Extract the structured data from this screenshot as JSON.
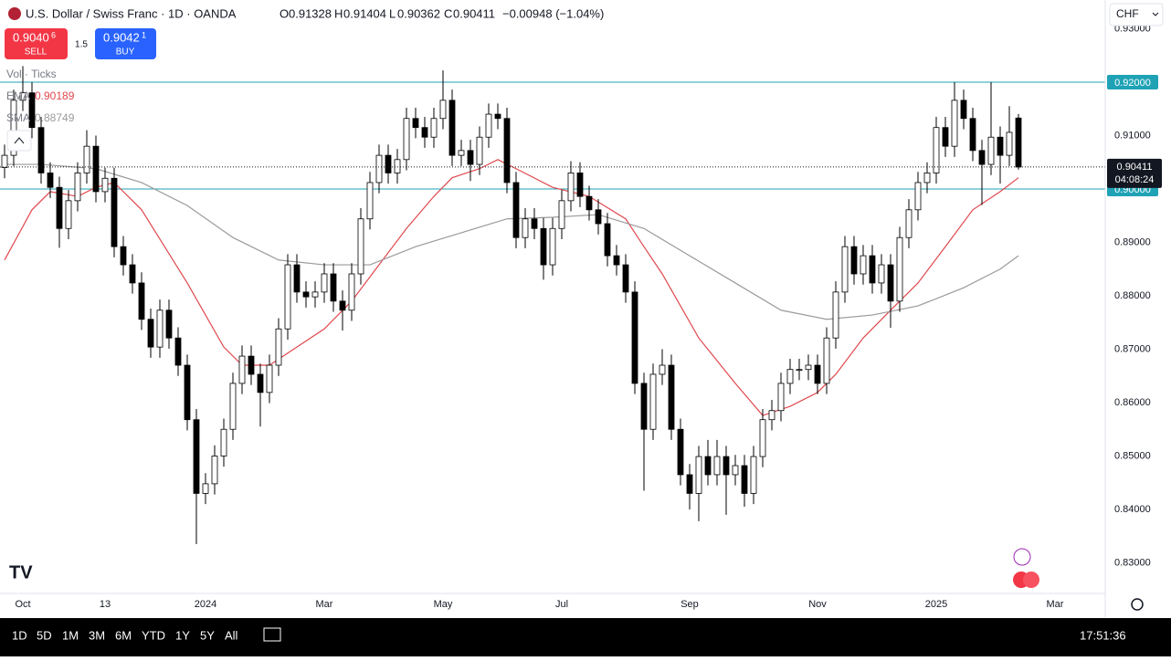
{
  "chart_data": {
    "type": "candlestick",
    "title": "U.S. Dollar / Swiss Franc · 1D · OANDA",
    "change": "−0.00948 (−1.04%)",
    "categories": [
      null,
      null,
      "Oct",
      null,
      null,
      null,
      null,
      null,
      null,
      null,
      null,
      "13",
      null,
      null,
      null,
      null,
      null,
      null,
      null,
      null,
      null,
      null,
      "2024",
      null,
      null,
      null,
      null,
      null,
      null,
      null,
      null,
      null,
      null,
      null,
      null,
      "Mar",
      null,
      null,
      null,
      null,
      null,
      null,
      null,
      null,
      null,
      null,
      null,
      null,
      "May",
      null,
      null,
      null,
      null,
      null,
      null,
      null,
      null,
      null,
      null,
      null,
      null,
      "Jul",
      null,
      null,
      null,
      null,
      null,
      null,
      null,
      null,
      null,
      null,
      null,
      null,
      null,
      "Sep",
      null,
      null,
      null,
      null,
      null,
      null,
      null,
      null,
      null,
      null,
      null,
      null,
      null,
      "Nov",
      null,
      null,
      null,
      null,
      null,
      null,
      null,
      null,
      null,
      null,
      null,
      null,
      "2025",
      null,
      null,
      null,
      null,
      null,
      null,
      null,
      null,
      null,
      null,
      null,
      null,
      "Mar"
    ],
    "ohlc": [
      [
        0.904,
        0.9083,
        0.902,
        0.9063
      ],
      [
        0.9063,
        0.9186,
        0.9043,
        0.9166
      ],
      [
        0.9166,
        0.923,
        0.9146,
        0.918
      ],
      [
        0.918,
        0.92,
        0.9095,
        0.9115
      ],
      [
        0.9115,
        0.9135,
        0.901,
        0.903
      ],
      [
        0.903,
        0.905,
        0.8983,
        0.9003
      ],
      [
        0.9003,
        0.9023,
        0.889,
        0.8926
      ],
      [
        0.8926,
        0.8998,
        0.8906,
        0.8978
      ],
      [
        0.8978,
        0.905,
        0.8958,
        0.903
      ],
      [
        0.903,
        0.911,
        0.901,
        0.908
      ],
      [
        0.908,
        0.91,
        0.8975,
        0.8995
      ],
      [
        0.8995,
        0.904,
        0.8975,
        0.902
      ],
      [
        0.902,
        0.904,
        0.8872,
        0.8892
      ],
      [
        0.8892,
        0.8912,
        0.8838,
        0.8858
      ],
      [
        0.8858,
        0.8878,
        0.8804,
        0.8824
      ],
      [
        0.8824,
        0.8844,
        0.8736,
        0.8756
      ],
      [
        0.8756,
        0.8776,
        0.8684,
        0.8704
      ],
      [
        0.8704,
        0.8793,
        0.8684,
        0.8773
      ],
      [
        0.8773,
        0.8793,
        0.8701,
        0.8721
      ],
      [
        0.8721,
        0.8741,
        0.865,
        0.867
      ],
      [
        0.867,
        0.869,
        0.8548,
        0.8568
      ],
      [
        0.8568,
        0.8588,
        0.8335,
        0.843
      ],
      [
        0.843,
        0.8468,
        0.841,
        0.8448
      ],
      [
        0.8448,
        0.852,
        0.8428,
        0.85
      ],
      [
        0.85,
        0.857,
        0.848,
        0.855
      ],
      [
        0.855,
        0.8656,
        0.853,
        0.8636
      ],
      [
        0.8636,
        0.8707,
        0.8616,
        0.8687
      ],
      [
        0.8687,
        0.8707,
        0.8633,
        0.8653
      ],
      [
        0.8653,
        0.8673,
        0.8555,
        0.8619
      ],
      [
        0.8619,
        0.869,
        0.8599,
        0.867
      ],
      [
        0.867,
        0.8758,
        0.865,
        0.8738
      ],
      [
        0.8738,
        0.8878,
        0.8718,
        0.8858
      ],
      [
        0.8858,
        0.8878,
        0.8787,
        0.8807
      ],
      [
        0.8807,
        0.8827,
        0.8778,
        0.8798
      ],
      [
        0.8798,
        0.8827,
        0.8778,
        0.8807
      ],
      [
        0.8807,
        0.8861,
        0.8787,
        0.8841
      ],
      [
        0.8841,
        0.8861,
        0.877,
        0.879
      ],
      [
        0.879,
        0.881,
        0.8735,
        0.8773
      ],
      [
        0.8773,
        0.8861,
        0.8753,
        0.8841
      ],
      [
        0.8841,
        0.8964,
        0.8821,
        0.8944
      ],
      [
        0.8944,
        0.9032,
        0.8924,
        0.9012
      ],
      [
        0.9012,
        0.9083,
        0.8992,
        0.9063
      ],
      [
        0.9063,
        0.9083,
        0.901,
        0.903
      ],
      [
        0.903,
        0.9075,
        0.901,
        0.9055
      ],
      [
        0.9055,
        0.9152,
        0.9035,
        0.9132
      ],
      [
        0.9132,
        0.9152,
        0.9095,
        0.9115
      ],
      [
        0.9115,
        0.9135,
        0.9077,
        0.9097
      ],
      [
        0.9097,
        0.9152,
        0.9077,
        0.9132
      ],
      [
        0.9132,
        0.9222,
        0.9112,
        0.9166
      ],
      [
        0.9166,
        0.9186,
        0.9043,
        0.9063
      ],
      [
        0.9063,
        0.9092,
        0.9043,
        0.9072
      ],
      [
        0.9072,
        0.9092,
        0.9015,
        0.9046
      ],
      [
        0.9046,
        0.9117,
        0.9026,
        0.9097
      ],
      [
        0.9097,
        0.916,
        0.9077,
        0.914
      ],
      [
        0.914,
        0.916,
        0.9112,
        0.9132
      ],
      [
        0.9132,
        0.9152,
        0.8992,
        0.9012
      ],
      [
        0.9012,
        0.9032,
        0.8889,
        0.8909
      ],
      [
        0.8909,
        0.8964,
        0.8889,
        0.8944
      ],
      [
        0.8944,
        0.8964,
        0.8906,
        0.8926
      ],
      [
        0.8926,
        0.8946,
        0.883,
        0.8858
      ],
      [
        0.8858,
        0.8946,
        0.8838,
        0.8926
      ],
      [
        0.8926,
        0.8998,
        0.8906,
        0.8978
      ],
      [
        0.8978,
        0.9052,
        0.8958,
        0.903
      ],
      [
        0.903,
        0.905,
        0.8966,
        0.8986
      ],
      [
        0.8986,
        0.9006,
        0.8941,
        0.8961
      ],
      [
        0.8961,
        0.8981,
        0.8915,
        0.8935
      ],
      [
        0.8935,
        0.8955,
        0.8855,
        0.8875
      ],
      [
        0.8875,
        0.8895,
        0.8838,
        0.8858
      ],
      [
        0.8858,
        0.8878,
        0.8787,
        0.8807
      ],
      [
        0.8807,
        0.8827,
        0.8616,
        0.8636
      ],
      [
        0.8636,
        0.8656,
        0.8435,
        0.855
      ],
      [
        0.855,
        0.8673,
        0.853,
        0.8653
      ],
      [
        0.8653,
        0.87,
        0.8633,
        0.867
      ],
      [
        0.867,
        0.869,
        0.853,
        0.855
      ],
      [
        0.855,
        0.857,
        0.8445,
        0.8465
      ],
      [
        0.8465,
        0.8485,
        0.84,
        0.843
      ],
      [
        0.843,
        0.8519,
        0.8378,
        0.8499
      ],
      [
        0.8499,
        0.853,
        0.8445,
        0.8465
      ],
      [
        0.8465,
        0.853,
        0.8445,
        0.8499
      ],
      [
        0.8499,
        0.8519,
        0.839,
        0.8465
      ],
      [
        0.8465,
        0.8502,
        0.8445,
        0.8482
      ],
      [
        0.8482,
        0.8502,
        0.8405,
        0.843
      ],
      [
        0.843,
        0.8519,
        0.841,
        0.8499
      ],
      [
        0.8499,
        0.8588,
        0.8479,
        0.8568
      ],
      [
        0.8568,
        0.8605,
        0.8548,
        0.8585
      ],
      [
        0.8585,
        0.8656,
        0.8565,
        0.8636
      ],
      [
        0.8636,
        0.8682,
        0.8616,
        0.8662
      ],
      [
        0.8662,
        0.8682,
        0.8642,
        0.8662
      ],
      [
        0.8662,
        0.869,
        0.8642,
        0.867
      ],
      [
        0.867,
        0.869,
        0.8616,
        0.8636
      ],
      [
        0.8636,
        0.8741,
        0.8616,
        0.8721
      ],
      [
        0.8721,
        0.8827,
        0.8701,
        0.8807
      ],
      [
        0.8807,
        0.8912,
        0.8787,
        0.8892
      ],
      [
        0.8892,
        0.8912,
        0.8821,
        0.8841
      ],
      [
        0.8841,
        0.8895,
        0.8821,
        0.8875
      ],
      [
        0.8875,
        0.8895,
        0.8804,
        0.8824
      ],
      [
        0.8824,
        0.8878,
        0.8804,
        0.8858
      ],
      [
        0.8858,
        0.8878,
        0.874,
        0.879
      ],
      [
        0.879,
        0.8929,
        0.877,
        0.8909
      ],
      [
        0.8909,
        0.8981,
        0.8889,
        0.8961
      ],
      [
        0.8961,
        0.9032,
        0.8941,
        0.9012
      ],
      [
        0.9012,
        0.905,
        0.8992,
        0.903
      ],
      [
        0.903,
        0.9135,
        0.901,
        0.9115
      ],
      [
        0.9115,
        0.9135,
        0.906,
        0.908
      ],
      [
        0.908,
        0.92,
        0.906,
        0.9166
      ],
      [
        0.9166,
        0.9186,
        0.9112,
        0.9132
      ],
      [
        0.9132,
        0.9152,
        0.9052,
        0.9072
      ],
      [
        0.9072,
        0.9092,
        0.897,
        0.9046
      ],
      [
        0.9046,
        0.92,
        0.9026,
        0.9097
      ],
      [
        0.9097,
        0.9117,
        0.901,
        0.9063
      ],
      [
        0.9063,
        0.9155,
        0.9043,
        0.9106
      ],
      [
        0.91328,
        0.91404,
        0.90362,
        0.90411
      ],
      null,
      null,
      null,
      null
    ],
    "up_color": "#ffffff",
    "down_color": "#000000",
    "wick_color": "#000000",
    "series": [
      {
        "name": "EMA",
        "color": "#e0484e",
        "current": 0.90189,
        "x": [
          0,
          3,
          5,
          8,
          10,
          12,
          15,
          20,
          24,
          26,
          29,
          32,
          35,
          38,
          41,
          44,
          47,
          49,
          52,
          54,
          56,
          60,
          64,
          68,
          70,
          72,
          76,
          80,
          83,
          86,
          89,
          91,
          94,
          97,
          100,
          103,
          106,
          109,
          111
        ],
        "values": [
          0.8867,
          0.8961,
          0.8995,
          0.8986,
          0.9003,
          0.9012,
          0.8961,
          0.8824,
          0.8704,
          0.867,
          0.867,
          0.8704,
          0.8738,
          0.879,
          0.8858,
          0.8926,
          0.8986,
          0.9021,
          0.9038,
          0.9055,
          0.9038,
          0.9003,
          0.8986,
          0.8944,
          0.8892,
          0.8841,
          0.8721,
          0.8636,
          0.8576,
          0.8593,
          0.8619,
          0.8653,
          0.8721,
          0.8773,
          0.8824,
          0.8892,
          0.8961,
          0.8995,
          0.9021
        ]
      },
      {
        "name": "SMA",
        "color": "#9a9a9a",
        "current": 0.88749,
        "x": [
          0,
          4,
          10,
          15,
          20,
          25,
          30,
          35,
          40,
          45,
          50,
          55,
          60,
          65,
          70,
          75,
          80,
          85,
          90,
          95,
          100,
          105,
          109,
          111
        ],
        "values": [
          0.9046,
          0.9046,
          0.9038,
          0.9012,
          0.8969,
          0.8909,
          0.8867,
          0.8858,
          0.8858,
          0.8892,
          0.8918,
          0.8944,
          0.8947,
          0.8952,
          0.8926,
          0.8875,
          0.8824,
          0.8773,
          0.8756,
          0.8764,
          0.8781,
          0.8815,
          0.885,
          0.8875
        ]
      }
    ],
    "hlines": [
      {
        "value": 0.92,
        "label": "0.92000"
      },
      {
        "value": 0.9,
        "label": "0.90000"
      }
    ],
    "hline_color": "#1fa2b5",
    "countdown": "04:08:24",
    "ylim": [
      0.82427,
      0.93538
    ],
    "yticks": [
      {
        "value": 0.83,
        "label": "0.83000"
      },
      {
        "value": 0.84,
        "label": "0.84000"
      },
      {
        "value": 0.85,
        "label": "0.85000"
      },
      {
        "value": 0.86,
        "label": "0.86000"
      },
      {
        "value": 0.87,
        "label": "0.87000"
      },
      {
        "value": 0.88,
        "label": "0.88000"
      },
      {
        "value": 0.89,
        "label": "0.89000"
      },
      {
        "value": 0.91,
        "label": "0.91000"
      },
      {
        "value": 0.93,
        "label": "0.93000"
      }
    ],
    "grid": false
  },
  "header": {
    "o": "O",
    "h": "H",
    "l": "L",
    "c": "C",
    "currency": "CHF"
  },
  "trade": {
    "sell_price": "0.9040",
    "sell_pip": "6",
    "sell": "SELL",
    "spread": "1.5",
    "buy_price": "0.9042",
    "buy_pip": "1",
    "buy": "BUY"
  },
  "legend": {
    "volume": "Vol · Ticks"
  },
  "toolbar": {
    "ranges": [
      "1D",
      "5D",
      "1M",
      "3M",
      "6M",
      "YTD",
      "1Y",
      "5Y",
      "All"
    ],
    "time": "17:51:36"
  }
}
